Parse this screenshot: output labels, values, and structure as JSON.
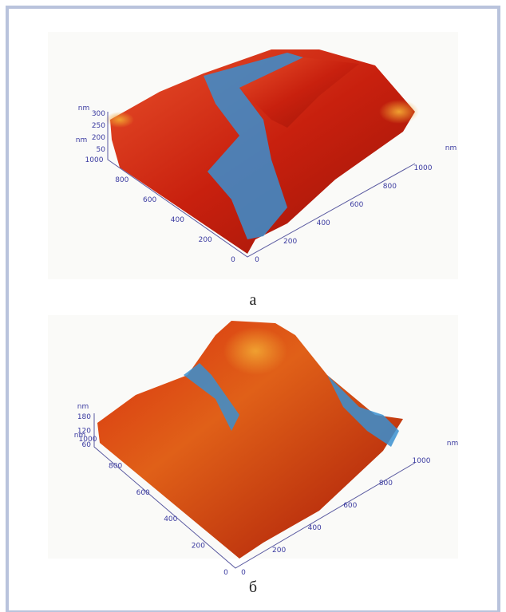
{
  "figures": [
    {
      "caption": "а",
      "z_unit": "nm",
      "z_ticks": [
        300,
        250,
        200,
        50
      ],
      "left_unit": "nm",
      "left_ticks": [
        1000,
        800,
        600,
        400,
        200,
        0
      ],
      "right_unit": "nm",
      "right_ticks": [
        0,
        200,
        400,
        600,
        800,
        1000
      ]
    },
    {
      "caption": "б",
      "z_unit": "nm",
      "z_ticks": [
        180,
        120,
        60
      ],
      "left_unit": "nm",
      "left_ticks": [
        1000,
        800,
        600,
        400,
        200,
        0
      ],
      "right_unit": "nm",
      "right_ticks": [
        0,
        200,
        400,
        600,
        800,
        1000
      ]
    }
  ]
}
